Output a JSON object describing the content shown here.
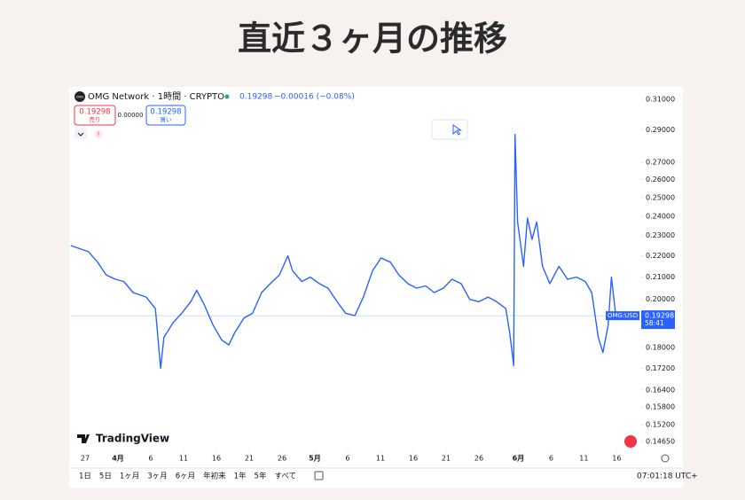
{
  "chart_data": {
    "type": "line",
    "title": "直近３ヶ月の推移",
    "log_scale": true,
    "grid": false,
    "ylim": [
      0.1465,
      0.31
    ],
    "yticks": [
      {
        "value": 0.31,
        "label": "0.31000"
      },
      {
        "value": 0.29,
        "label": "0.29000"
      },
      {
        "value": 0.27,
        "label": "0.27000"
      },
      {
        "value": 0.26,
        "label": "0.26000"
      },
      {
        "value": 0.25,
        "label": "0.25000"
      },
      {
        "value": 0.24,
        "label": "0.24000"
      },
      {
        "value": 0.23,
        "label": "0.23000"
      },
      {
        "value": 0.22,
        "label": "0.22000"
      },
      {
        "value": 0.21,
        "label": "0.21000"
      },
      {
        "value": 0.2,
        "label": "0.20000"
      },
      {
        "value": 0.18,
        "label": "0.18000"
      },
      {
        "value": 0.172,
        "label": "0.17200"
      },
      {
        "value": 0.164,
        "label": "0.16400"
      },
      {
        "value": 0.158,
        "label": "0.15800"
      },
      {
        "value": 0.152,
        "label": "0.15200"
      },
      {
        "value": 0.1465,
        "label": "0.14650"
      }
    ],
    "xlim": [
      -2.16,
      84.6
    ],
    "xticks": [
      {
        "value": 0,
        "label": "27"
      },
      {
        "value": 5,
        "label": "4月"
      },
      {
        "value": 10,
        "label": "6"
      },
      {
        "value": 15,
        "label": "11"
      },
      {
        "value": 20,
        "label": "16"
      },
      {
        "value": 25,
        "label": "21"
      },
      {
        "value": 30,
        "label": "26"
      },
      {
        "value": 35,
        "label": "5月"
      },
      {
        "value": 40,
        "label": "6"
      },
      {
        "value": 45,
        "label": "11"
      },
      {
        "value": 50,
        "label": "16"
      },
      {
        "value": 55,
        "label": "21"
      },
      {
        "value": 60,
        "label": "26"
      },
      {
        "value": 66,
        "label": "6月"
      },
      {
        "value": 71,
        "label": "6"
      },
      {
        "value": 76,
        "label": "11"
      },
      {
        "value": 81,
        "label": "16"
      }
    ],
    "x": [
      -2.2,
      0.5,
      1.9,
      3.2,
      4.6,
      5.9,
      7.3,
      9.3,
      10.7,
      11.5,
      12.0,
      13.4,
      14.7,
      16.1,
      17.0,
      18.1,
      19.5,
      20.8,
      21.9,
      22.8,
      24.2,
      25.5,
      26.9,
      28.2,
      29.6,
      30.9,
      31.6,
      33.0,
      34.3,
      35.7,
      37.0,
      38.4,
      39.7,
      41.1,
      42.4,
      43.8,
      45.1,
      46.5,
      47.8,
      49.2,
      50.5,
      51.9,
      53.2,
      54.6,
      55.9,
      57.3,
      58.6,
      60.0,
      61.4,
      62.7,
      64.1,
      64.7,
      65.3,
      65.5,
      65.9,
      66.8,
      67.4,
      68.1,
      68.8,
      69.7,
      70.8,
      72.2,
      73.5,
      74.9,
      76.2,
      77.2,
      78.2,
      78.9,
      79.7,
      80.2,
      80.9,
      81.6
    ],
    "series": [
      {
        "name": "OMG:USD",
        "color": "#2962ff",
        "values": [
          0.225,
          0.222,
          0.217,
          0.211,
          0.209,
          0.208,
          0.203,
          0.201,
          0.196,
          0.172,
          0.184,
          0.19,
          0.194,
          0.199,
          0.204,
          0.198,
          0.189,
          0.183,
          0.181,
          0.186,
          0.192,
          0.194,
          0.203,
          0.207,
          0.211,
          0.22,
          0.213,
          0.208,
          0.21,
          0.207,
          0.205,
          0.199,
          0.194,
          0.193,
          0.201,
          0.213,
          0.219,
          0.217,
          0.211,
          0.207,
          0.205,
          0.206,
          0.203,
          0.205,
          0.209,
          0.207,
          0.2,
          0.199,
          0.201,
          0.199,
          0.196,
          0.186,
          0.173,
          0.287,
          0.237,
          0.215,
          0.239,
          0.228,
          0.237,
          0.215,
          0.207,
          0.215,
          0.209,
          0.21,
          0.208,
          0.203,
          0.184,
          0.178,
          0.189,
          0.21,
          0.192,
          0.19298
        ]
      }
    ],
    "price_line": 0.19298,
    "price_line_color": "#2962ff"
  },
  "ui": {
    "logo": "OMG",
    "symbol": "OMG Network · 1時間 · CRYPTO",
    "price": "0.19298",
    "change": "−0.00016 (−0.08%)",
    "sell_price": "0.19298",
    "sell": "売り",
    "spread": "0.00000",
    "buy_price": "0.19298",
    "buy": "買い",
    "brand": "TradingView",
    "countdown": "58:41",
    "ranges": [
      "1日",
      "5日",
      "1ヶ月",
      "3ヶ月",
      "6ヶ月",
      "年初来",
      "1年",
      "5年",
      "すべて"
    ],
    "clock": "07:01:18 UTC+"
  }
}
